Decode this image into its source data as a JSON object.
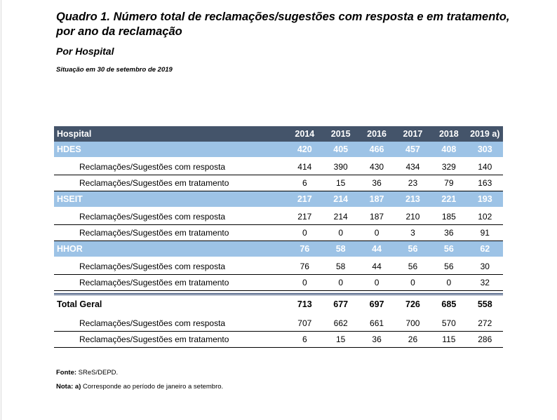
{
  "document": {
    "title": "Quadro 1. Número total de reclamações/sugestões com resposta e em tratamento, por ano da reclamação",
    "subtitle": "Por Hospital",
    "situation": "Situação em 30 de setembro de 2019"
  },
  "table": {
    "headers": [
      "Hospital",
      "2014",
      "2015",
      "2016",
      "2017",
      "2018",
      "2019 a)"
    ],
    "groups": [
      {
        "name": "HDES",
        "values": [
          "420",
          "405",
          "466",
          "457",
          "408",
          "303"
        ],
        "rows": [
          {
            "label": "Reclamações/Sugestões com resposta",
            "values": [
              "414",
              "390",
              "430",
              "434",
              "329",
              "140"
            ]
          },
          {
            "label": "Reclamações/Sugestões em tratamento",
            "values": [
              "6",
              "15",
              "36",
              "23",
              "79",
              "163"
            ]
          }
        ]
      },
      {
        "name": "HSEIT",
        "values": [
          "217",
          "214",
          "187",
          "213",
          "221",
          "193"
        ],
        "rows": [
          {
            "label": "Reclamações/Sugestões com resposta",
            "values": [
              "217",
              "214",
              "187",
              "210",
              "185",
              "102"
            ]
          },
          {
            "label": "Reclamações/Sugestões em tratamento",
            "values": [
              "0",
              "0",
              "0",
              "3",
              "36",
              "91"
            ]
          }
        ]
      },
      {
        "name": "HHOR",
        "values": [
          "76",
          "58",
          "44",
          "56",
          "56",
          "62"
        ],
        "rows": [
          {
            "label": "Reclamações/Sugestões com resposta",
            "values": [
              "76",
              "58",
              "44",
              "56",
              "56",
              "30"
            ]
          },
          {
            "label": "Reclamações/Sugestões em tratamento",
            "values": [
              "0",
              "0",
              "0",
              "0",
              "0",
              "32"
            ]
          }
        ]
      }
    ],
    "total": {
      "name": "Total Geral",
      "values": [
        "713",
        "677",
        "697",
        "726",
        "685",
        "558"
      ],
      "rows": [
        {
          "label": "Reclamações/Sugestões com resposta",
          "values": [
            "707",
            "662",
            "661",
            "700",
            "570",
            "272"
          ]
        },
        {
          "label": "Reclamações/Sugestões em tratamento",
          "values": [
            "6",
            "15",
            "36",
            "26",
            "115",
            "286"
          ]
        }
      ]
    }
  },
  "footnotes": {
    "source_label": "Fonte:",
    "source_text": " SReS/DEPD.",
    "note_label": "Nota: a)",
    "note_text": " Corresponde ao período de janeiro a setembro."
  },
  "colors": {
    "header_bg": "#44546a",
    "group_bg": "#9dc3e6",
    "total_rule": "#1f3864"
  }
}
